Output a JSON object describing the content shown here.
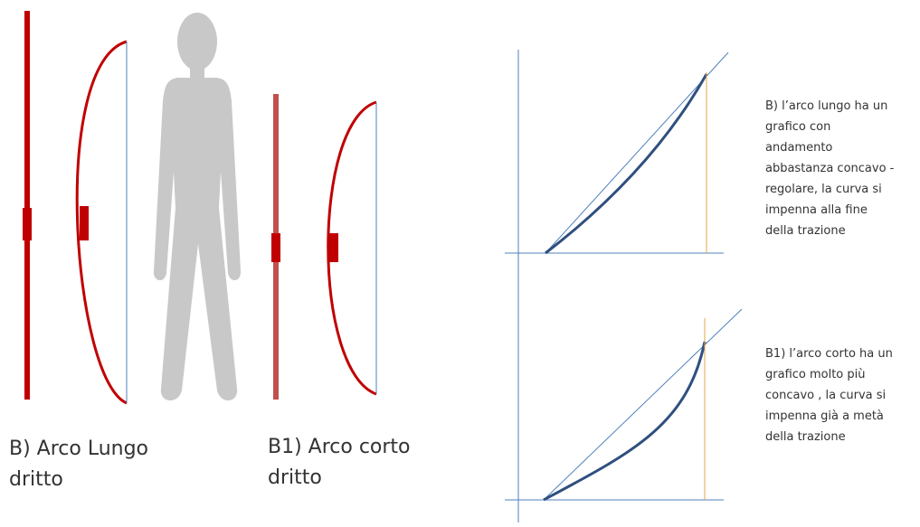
{
  "colors": {
    "bow_red": "#c00000",
    "bow_red_light": "#c0504d",
    "string_blue": "#4f81bd",
    "figure_gray": "#c8c8c8",
    "axis_blue": "#4f81bd",
    "curve_dark": "#2f4f7f",
    "marker_orange": "#e4a547"
  },
  "icons": {
    "person": "person-silhouette-icon"
  },
  "captions": {
    "long_bow": "B) Arco Lungo\ndritto",
    "short_bow": "B1) Arco corto\ndritto"
  },
  "graph_notes": {
    "long_bow": "B) l’arco lungo ha un\ngrafico con\nandamento\nabbastanza concavo -\nregolare, la curva si\nimpenna alla fine\ndella trazione",
    "short_bow": "B1) l’arco corto ha un\ngrafico molto più\nconcavo , la curva si\nimpenna già a metà\ndella trazione"
  }
}
